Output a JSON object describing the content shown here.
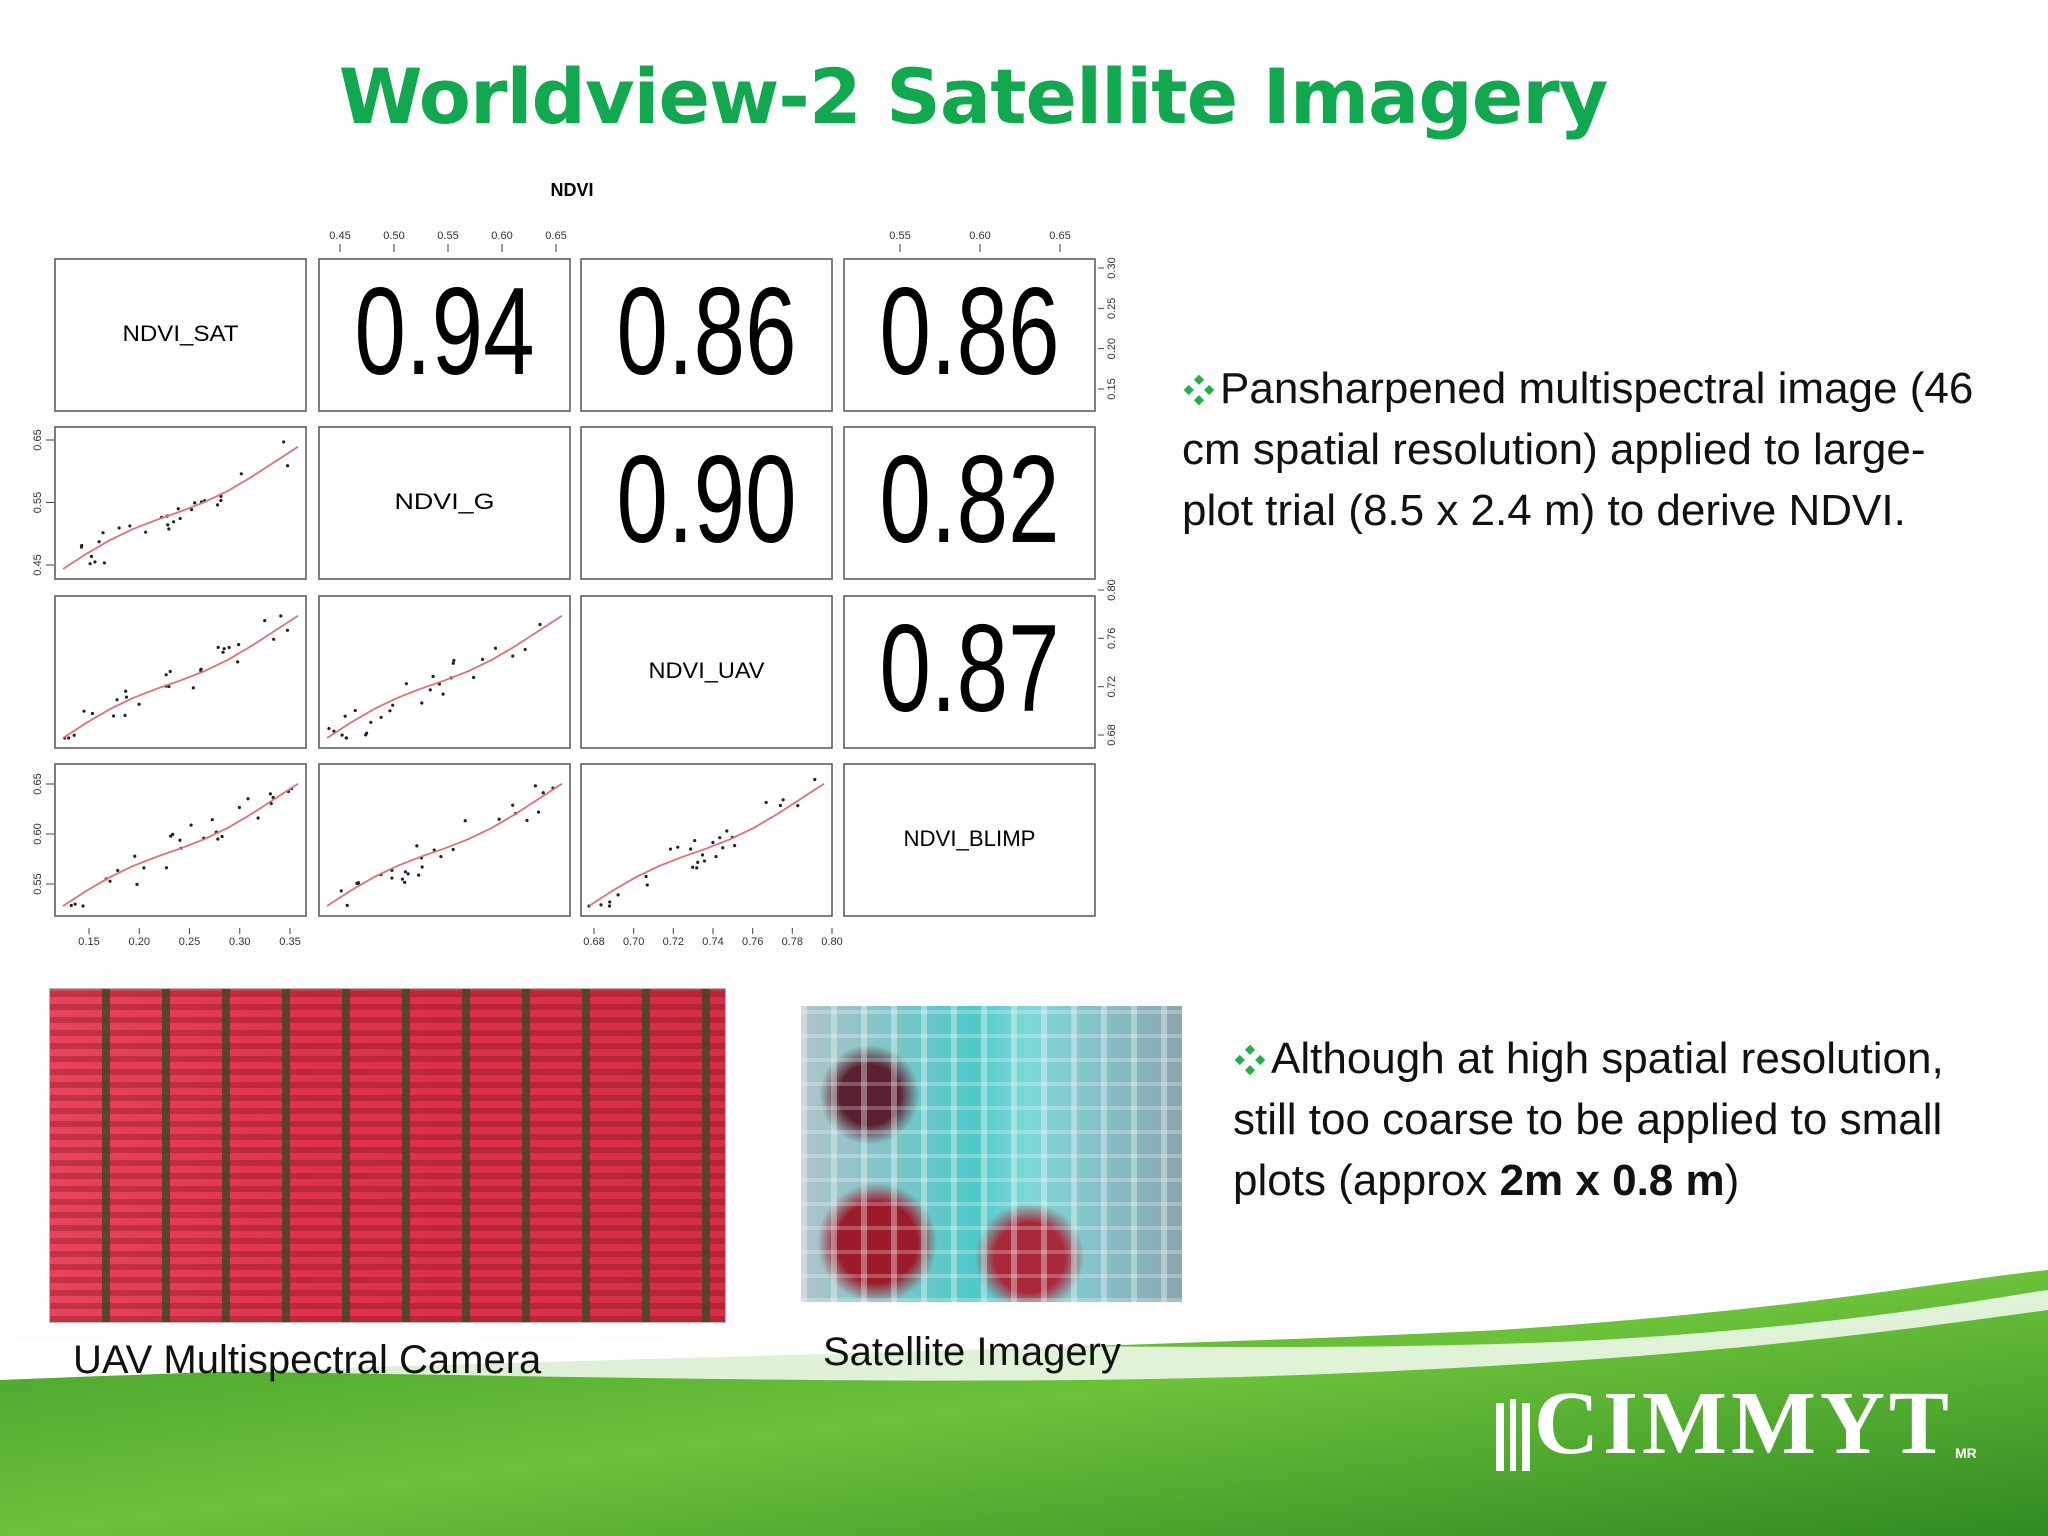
{
  "title": "Worldview-2 Satellite Imagery",
  "pairs_plot": {
    "title": "NDVI",
    "variables": [
      "NDVI_SAT",
      "NDVI_G",
      "NDVI_UAV",
      "NDVI_BLIMP"
    ],
    "correlations": [
      {
        "row": 0,
        "col": 1,
        "label": "0.94"
      },
      {
        "row": 0,
        "col": 2,
        "label": "0.86"
      },
      {
        "row": 0,
        "col": 3,
        "label": "0.86"
      },
      {
        "row": 1,
        "col": 2,
        "label": "0.90"
      },
      {
        "row": 1,
        "col": 3,
        "label": "0.82"
      },
      {
        "row": 2,
        "col": 3,
        "label": "0.87"
      }
    ],
    "axes": {
      "top_g": [
        "0.45",
        "0.50",
        "0.55",
        "0.60",
        "0.65"
      ],
      "top_blimp": [
        "0.55",
        "0.60",
        "0.65"
      ],
      "right_sat": [
        "0.15",
        "0.20",
        "0.25",
        "0.30"
      ],
      "right_uav": [
        "0.68",
        "0.72",
        "0.76",
        "0.80"
      ],
      "left_g": [
        "0.45",
        "0.55",
        "0.65"
      ],
      "left_blimp": [
        "0.55",
        "0.60",
        "0.65"
      ],
      "bottom_sat": [
        "0.15",
        "0.20",
        "0.25",
        "0.30",
        "0.35"
      ],
      "bottom_uav": [
        "0.68",
        "0.70",
        "0.72",
        "0.74",
        "0.76",
        "0.78",
        "0.80"
      ]
    }
  },
  "bullets": [
    {
      "text": "Pansharpened multispectral image (46 cm spatial resolution) applied to large-plot trial (8.5 x 2.4 m) to derive NDVI."
    },
    {
      "parts": [
        "Although at high spatial resolution, still too coarse to be applied to small plots (approx ",
        "2m x 0.8 m",
        ")"
      ]
    }
  ],
  "captions": [
    "UAV Multispectral Camera",
    "Satellite Imagery"
  ],
  "logo": {
    "text": "CIMMYT",
    "mark": "MR"
  }
}
